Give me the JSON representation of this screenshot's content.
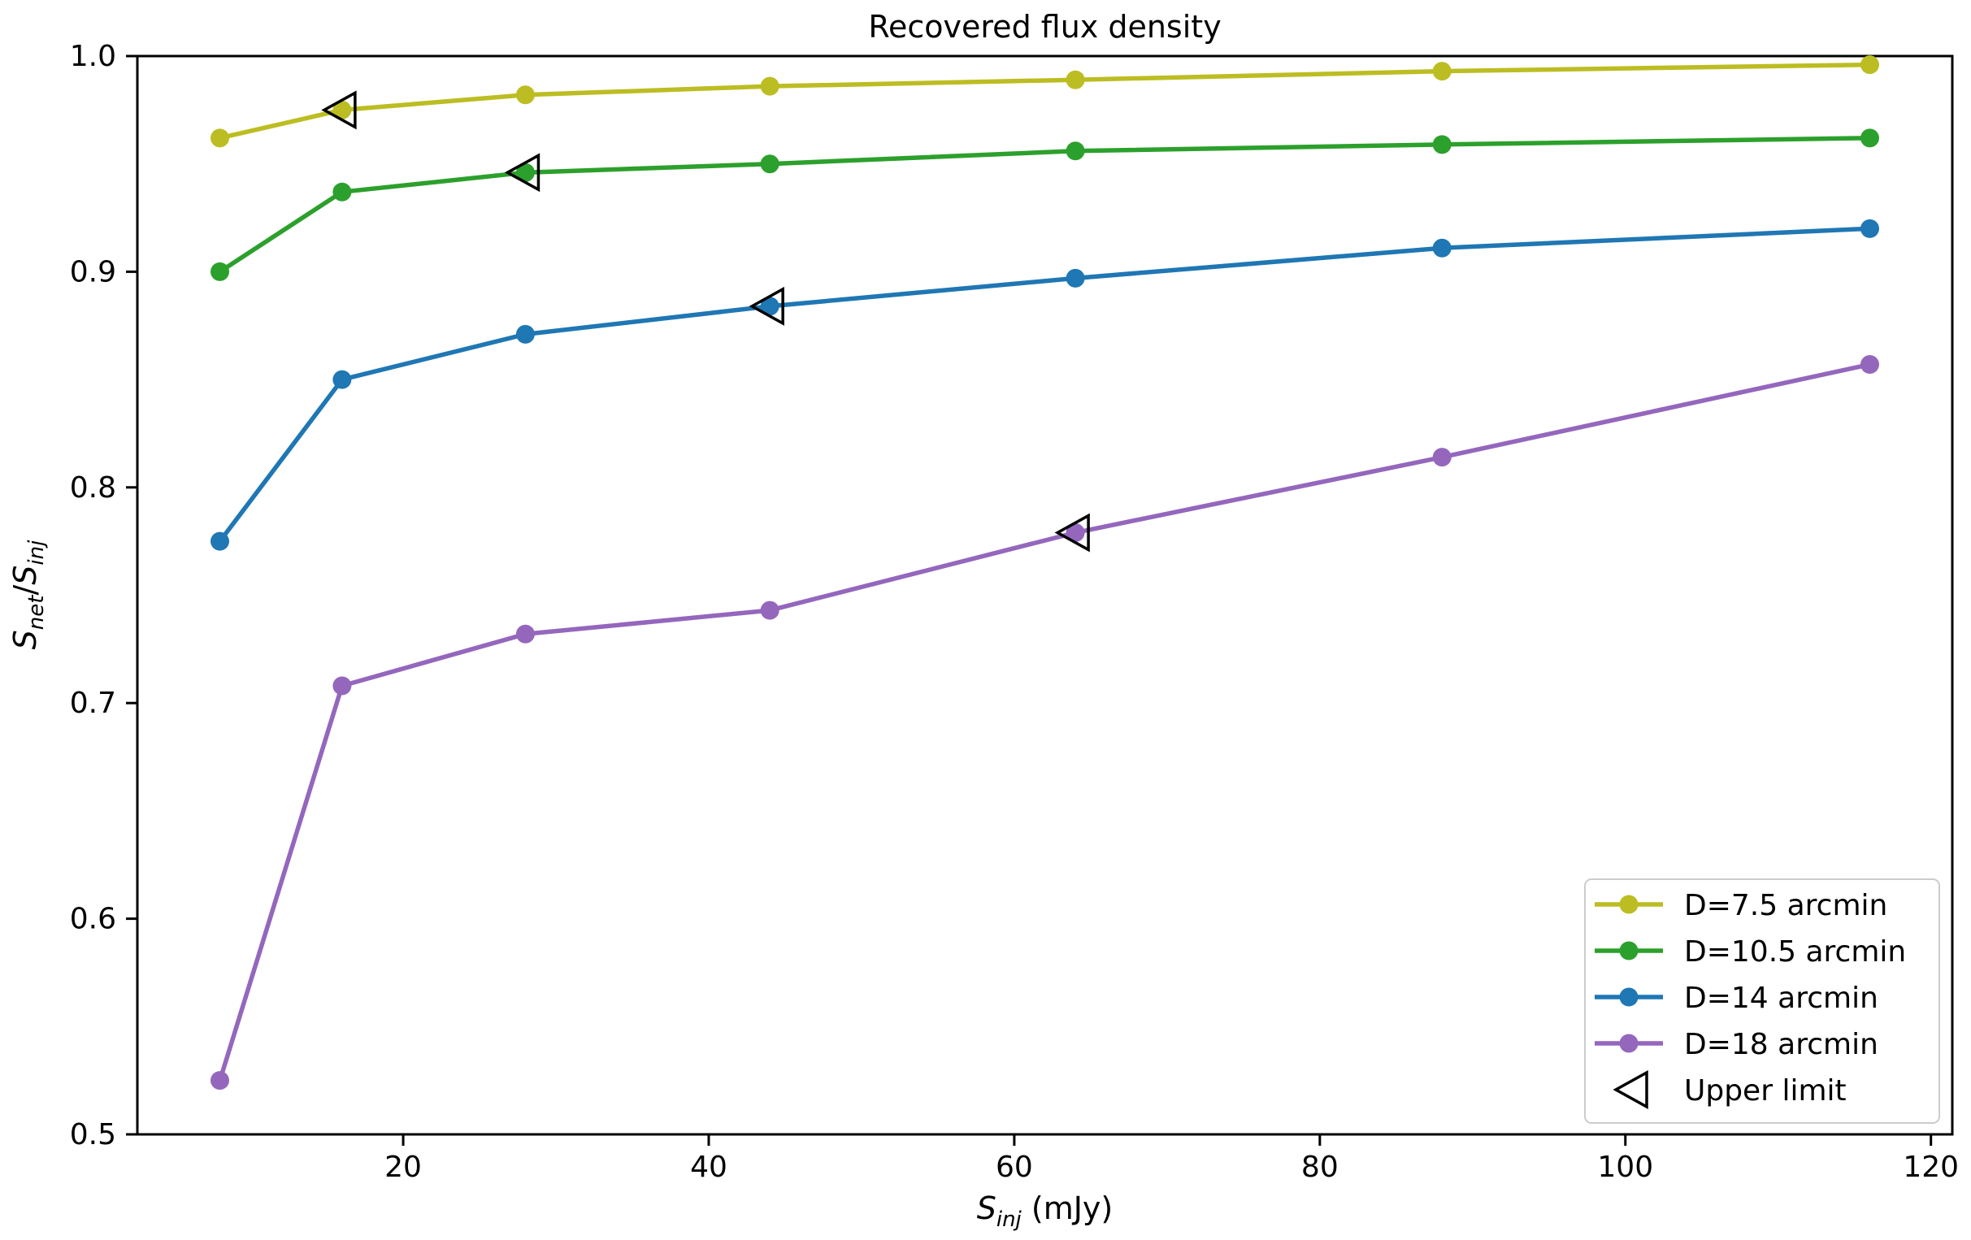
{
  "chart_data": {
    "type": "line",
    "title": "Recovered flux density",
    "xlabel": "S_inj (mJy)",
    "ylabel": "S_net/S_inj",
    "xlabel_parts": [
      {
        "t": "S",
        "i": true
      },
      {
        "t": "inj",
        "i": true,
        "sub": true
      },
      {
        "t": " (mJy)"
      }
    ],
    "ylabel_parts": [
      {
        "t": "S",
        "i": true
      },
      {
        "t": "net",
        "i": true,
        "sub": true
      },
      {
        "t": "/"
      },
      {
        "t": "S",
        "i": true
      },
      {
        "t": "inj",
        "i": true,
        "sub": true
      }
    ],
    "xlim": [
      2.6,
      121.4
    ],
    "ylim": [
      0.5,
      1.0
    ],
    "xticks": [
      20,
      40,
      60,
      80,
      100,
      120
    ],
    "yticks": [
      0.5,
      0.6,
      0.7,
      0.8,
      0.9,
      1.0
    ],
    "grid": false,
    "legend_position": "lower right",
    "background_color": "#ffffff",
    "axis_color": "#000000",
    "legend_border_color": "#cccccc",
    "x": [
      8,
      16,
      28,
      44,
      64,
      88,
      116
    ],
    "series": [
      {
        "name": "D=7.5 arcmin",
        "color": "#bcbd22",
        "marker": "circle",
        "values": [
          0.962,
          0.975,
          0.982,
          0.986,
          0.989,
          0.993,
          0.996
        ],
        "upper_limit_x": 16
      },
      {
        "name": "D=10.5 arcmin",
        "color": "#2ca02c",
        "marker": "circle",
        "values": [
          0.9,
          0.937,
          0.946,
          0.95,
          0.956,
          0.959,
          0.962
        ],
        "upper_limit_x": 28
      },
      {
        "name": "D=14 arcmin",
        "color": "#1f77b4",
        "marker": "circle",
        "values": [
          0.775,
          0.85,
          0.871,
          0.884,
          0.897,
          0.911,
          0.92
        ],
        "upper_limit_x": 44
      },
      {
        "name": "D=18 arcmin",
        "color": "#9467bd",
        "marker": "circle",
        "values": [
          0.525,
          0.708,
          0.732,
          0.743,
          0.779,
          0.814,
          0.857
        ],
        "upper_limit_x": 64
      }
    ],
    "upper_limit_label": "Upper limit",
    "upper_limit_marker": "left-triangle-open"
  }
}
